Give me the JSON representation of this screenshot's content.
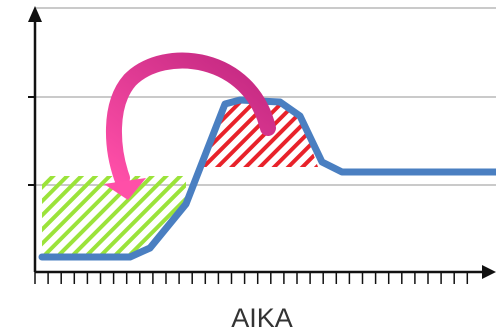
{
  "x_label": "AIKA"
}
